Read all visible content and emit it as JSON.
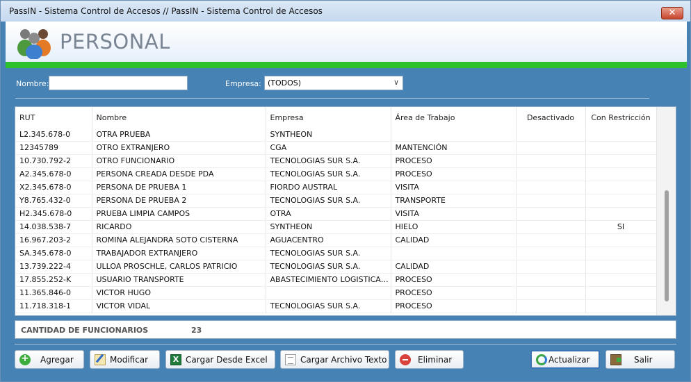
{
  "window": {
    "title": "PassIN - Sistema Control de Accesos // PassIN - Sistema Control de Accesos",
    "close_glyph": "✕"
  },
  "banner": {
    "title": "PERSONAL",
    "icon": "users-icon"
  },
  "filters": {
    "nombre_label": "Nombre:",
    "nombre_value": "",
    "empresa_label": "Empresa:",
    "empresa_selected": "(TODOS)"
  },
  "table": {
    "columns": [
      "RUT",
      "Nombre",
      "Empresa",
      "Área de Trabajo",
      "Desactivado",
      "Con Restricción"
    ],
    "rows": [
      [
        "L2.345.678-0",
        "OTRA PRUEBA",
        "SYNTHEON",
        "",
        "",
        ""
      ],
      [
        "12345789",
        "OTRO EXTRANJERO",
        "CGA",
        "MANTENCIÓN",
        "",
        ""
      ],
      [
        "10.730.792-2",
        "OTRO FUNCIONARIO",
        "TECNOLOGIAS SUR S.A.",
        "PROCESO",
        "",
        ""
      ],
      [
        "A2.345.678-0",
        "PERSONA CREADA DESDE PDA",
        "TECNOLOGIAS SUR S.A.",
        "PROCESO",
        "",
        ""
      ],
      [
        "X2.345.678-0",
        "PERSONA DE PRUEBA 1",
        "FIORDO AUSTRAL",
        "VISITA",
        "",
        ""
      ],
      [
        "Y8.765.432-0",
        "PERSONA DE PRUEBA 2",
        "TECNOLOGIAS SUR S.A.",
        "TRANSPORTE",
        "",
        ""
      ],
      [
        "H2.345.678-0",
        "PRUEBA LIMPIA CAMPOS",
        "OTRA",
        "VISITA",
        "",
        ""
      ],
      [
        "14.038.538-7",
        "RICARDO",
        "SYNTHEON",
        "HIELO",
        "",
        "SI"
      ],
      [
        "16.967.203-2",
        "ROMINA ALEJANDRA SOTO CISTERNA",
        "AGUACENTRO",
        "CALIDAD",
        "",
        ""
      ],
      [
        "SA.345.678-0",
        "TRABAJADOR EXTRANJERO",
        "TECNOLOGIAS SUR S.A.",
        "",
        "",
        ""
      ],
      [
        "13.739.222-4",
        "ULLOA  PROSCHLE, CARLOS PATRICIO",
        "TECNOLOGIAS SUR S.A.",
        "CALIDAD",
        "",
        ""
      ],
      [
        "17.855.252-K",
        "USUARIO TRANSPORTE",
        "ABASTECIMIENTO LOGISTICA ...",
        "PROCESO",
        "",
        ""
      ],
      [
        "11.365.846-0",
        "VICTOR HUGO",
        "",
        "PROCESO",
        "",
        ""
      ],
      [
        "11.718.318-1",
        "VICTOR VIDAL",
        "TECNOLOGIAS SUR S.A.",
        "PROCESO",
        "",
        ""
      ]
    ]
  },
  "summary": {
    "label": "CANTIDAD DE FUNCIONARIOS",
    "value": "23"
  },
  "buttons": {
    "agregar": "Agregar",
    "modificar": "Modificar",
    "cargar_excel": "Cargar Desde Excel",
    "cargar_texto": "Cargar Archivo Texto",
    "eliminar": "Eliminar",
    "actualizar": "Actualizar",
    "salir": "Salir"
  },
  "colors": {
    "accent_bar": "#2ec12e",
    "panel": "#4682b4"
  }
}
